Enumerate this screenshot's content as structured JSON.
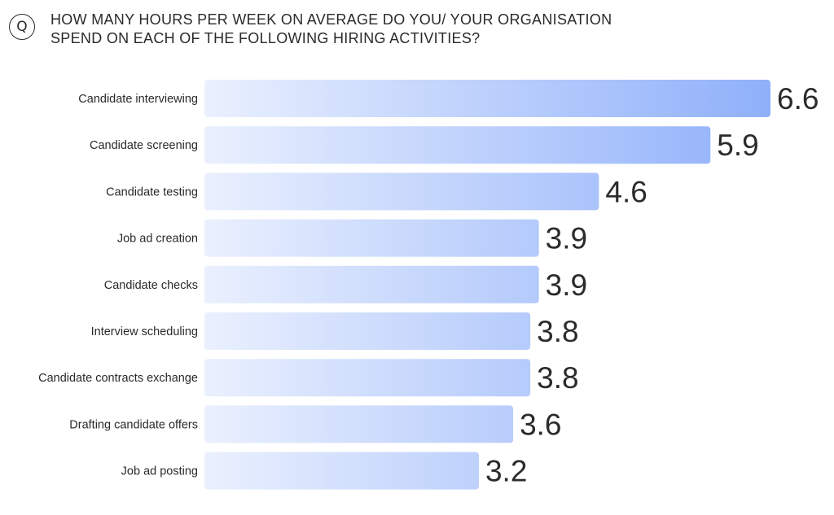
{
  "question_badge": "Q",
  "title_lines": [
    "HOW MANY HOURS PER WEEK ON AVERAGE DO YOU/ YOUR ORGANISATION",
    "SPEND ON EACH OF THE FOLLOWING HIRING ACTIVITIES?"
  ],
  "colors": {
    "bar_start": "#eaf0fe",
    "bar_end": "#8fb0fa",
    "text": "#2a2a2a"
  },
  "chart_data": {
    "type": "bar",
    "orientation": "horizontal",
    "title": "HOW MANY HOURS PER WEEK ON AVERAGE DO YOU/ YOUR ORGANISATION SPEND ON EACH OF THE FOLLOWING HIRING ACTIVITIES?",
    "categories": [
      "Candidate interviewing",
      "Candidate screening",
      "Candidate testing",
      "Job ad creation",
      "Candidate checks",
      "Interview scheduling",
      "Candidate contracts exchange",
      "Drafting candidate offers",
      "Job ad posting"
    ],
    "values": [
      6.6,
      5.9,
      4.6,
      3.9,
      3.9,
      3.8,
      3.8,
      3.6,
      3.2
    ],
    "value_labels": [
      "6.6",
      "5.9",
      "4.6",
      "3.9",
      "3.9",
      "3.8",
      "3.8",
      "3.6",
      "3.2"
    ],
    "xlabel": "",
    "ylabel": "",
    "grid": false,
    "legend": "none"
  }
}
